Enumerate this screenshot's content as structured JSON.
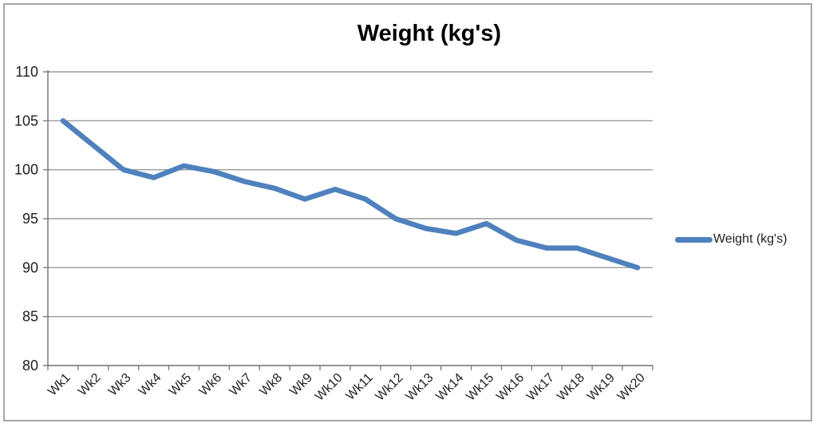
{
  "title": "Weight (kg's)",
  "legend": {
    "label": "Weight (kg's)"
  },
  "colors": {
    "line": "#4E81BD",
    "gridline": "#9C9C9C",
    "axis": "#808080",
    "tick": "#808080",
    "label_text": "#1f1f1f",
    "title_text": "#000000",
    "border": "#A6A6A6"
  },
  "chart_data": {
    "type": "line",
    "title": "Weight (kg's)",
    "categories": [
      "Wk1",
      "Wk2",
      "Wk3",
      "Wk4",
      "Wk5",
      "Wk6",
      "Wk7",
      "Wk8",
      "Wk9",
      "Wk10",
      "Wk11",
      "Wk12",
      "Wk13",
      "Wk14",
      "Wk15",
      "Wk16",
      "Wk17",
      "Wk18",
      "Wk19",
      "Wk20"
    ],
    "series": [
      {
        "name": "Weight (kg's)",
        "color": "#4E81BD",
        "values": [
          105,
          102.5,
          100,
          99.2,
          100.4,
          99.8,
          98.8,
          98.1,
          97,
          98,
          97,
          95,
          94,
          93.5,
          94.5,
          92.8,
          92,
          92,
          91,
          90
        ]
      }
    ],
    "xlabel": "",
    "ylabel": "",
    "ylim": [
      80,
      110
    ],
    "yticks": [
      80,
      85,
      90,
      95,
      100,
      105,
      110
    ],
    "grid": true,
    "legend_position": "right",
    "x_label_rotation": -45
  }
}
